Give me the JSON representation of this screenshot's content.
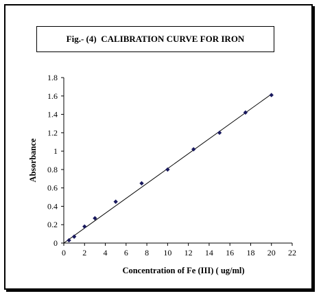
{
  "chart_data": {
    "type": "scatter",
    "title": "Fig.- (4)  CALIBRATION CURVE FOR IRON",
    "xlabel": "Concentration of Fe (III) ( ug/ml)",
    "ylabel": "Absorbance",
    "xlim": [
      0,
      22
    ],
    "ylim": [
      0,
      1.8
    ],
    "x_ticks": [
      "0",
      "2",
      "4",
      "6",
      "8",
      "10",
      "12",
      "14",
      "16",
      "18",
      "20",
      "22"
    ],
    "y_ticks": [
      "0",
      "0.2",
      "0.4",
      "0.6",
      "0.8",
      "1",
      "1.2",
      "1.4",
      "1.6",
      "1.8"
    ],
    "grid": false,
    "legend": "none",
    "marker_color": "#1a1a5e",
    "line_color": "#000000",
    "points": [
      {
        "x": 0.5,
        "y": 0.03
      },
      {
        "x": 1,
        "y": 0.07
      },
      {
        "x": 2,
        "y": 0.18
      },
      {
        "x": 3,
        "y": 0.27
      },
      {
        "x": 5,
        "y": 0.45
      },
      {
        "x": 7.5,
        "y": 0.65
      },
      {
        "x": 10,
        "y": 0.8
      },
      {
        "x": 12.5,
        "y": 1.02
      },
      {
        "x": 15,
        "y": 1.2
      },
      {
        "x": 17.5,
        "y": 1.42
      },
      {
        "x": 20,
        "y": 1.61
      }
    ],
    "trendline": {
      "x": [
        0,
        20
      ],
      "y": [
        0.0,
        1.62
      ]
    }
  }
}
